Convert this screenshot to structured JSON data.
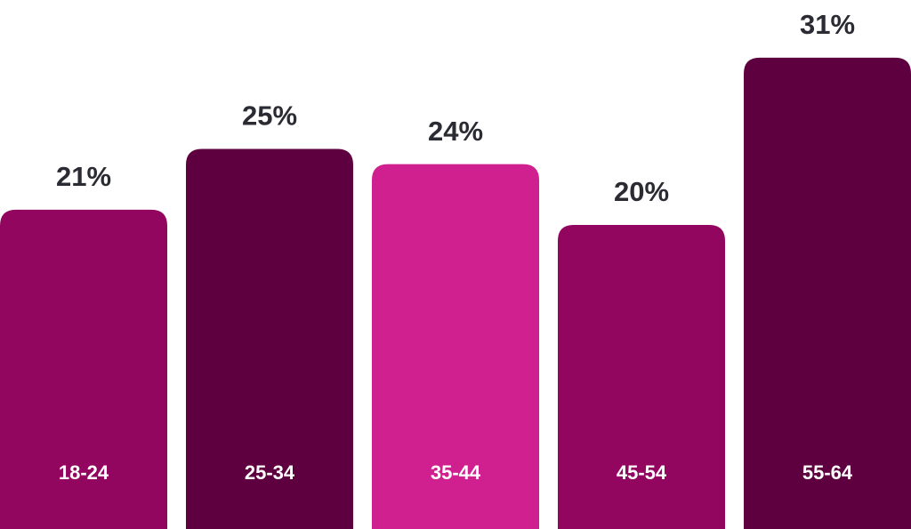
{
  "chart_data": {
    "type": "bar",
    "categories": [
      "18-24",
      "25-34",
      "35-44",
      "45-54",
      "55-64"
    ],
    "values": [
      21,
      25,
      24,
      20,
      31
    ],
    "value_labels": [
      "21%",
      "25%",
      "24%",
      "20%",
      "31%"
    ],
    "colors": [
      "#920660",
      "#5e003f",
      "#d01f8f",
      "#920660",
      "#5e003f"
    ]
  }
}
